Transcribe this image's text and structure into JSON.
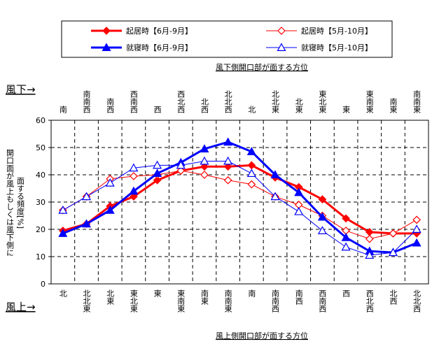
{
  "chart_data": {
    "type": "line",
    "categories": [
      "北",
      "北北東",
      "北東",
      "東北東",
      "東",
      "東南東",
      "南東",
      "南南東",
      "南",
      "南南西",
      "南西",
      "西南西",
      "西",
      "西北西",
      "北西",
      "北北西"
    ],
    "top_categories": [
      "南",
      "南南西",
      "南西",
      "西南西",
      "西",
      "西北西",
      "北西",
      "北北西",
      "北",
      "北北東",
      "北東",
      "東北東",
      "東",
      "東南東",
      "南東",
      "南南東"
    ],
    "x_label": "風上側開口部が面する方位",
    "x2_label": "風下側開口部が面する方位",
    "left_top_label": "風下→",
    "left_bottom_label": "風上→",
    "y_label": [
      "開口面が風上もしくは風下側に",
      "面する頻度[%]"
    ],
    "ylim": [
      0,
      60
    ],
    "yticks": [
      0,
      10,
      20,
      30,
      40,
      50,
      60
    ],
    "grid": true,
    "series": [
      {
        "name": "起居時【6月-9月】",
        "color": "#ff0000",
        "marker": "diamond",
        "filled": true,
        "line_width": 3,
        "values": [
          19.5,
          22,
          28.5,
          32,
          38,
          41.5,
          43,
          43,
          43.5,
          39,
          35.5,
          31,
          24,
          19,
          18.5,
          18.5
        ]
      },
      {
        "name": "起居時【5月-10月】",
        "color": "#ff0000",
        "marker": "diamond",
        "filled": false,
        "line_width": 1,
        "values": [
          27,
          32,
          38.5,
          39.5,
          40,
          41.5,
          40,
          38,
          36.5,
          32,
          29,
          25,
          19.5,
          16.5,
          18.5,
          23.5
        ]
      },
      {
        "name": "就寝時【6月-9月】",
        "color": "#0000ff",
        "marker": "triangle",
        "filled": true,
        "line_width": 3,
        "values": [
          18.5,
          22,
          27,
          34,
          40.5,
          44.5,
          49.5,
          52,
          48.5,
          40,
          33.5,
          24.5,
          17,
          12,
          11.5,
          15
        ]
      },
      {
        "name": "就寝時【5月-10月】",
        "color": "#0000ff",
        "marker": "triangle",
        "filled": false,
        "line_width": 1,
        "values": [
          27,
          32,
          37,
          42.5,
          43.5,
          43.5,
          45,
          45,
          40.5,
          32,
          26.5,
          19.5,
          13.5,
          10.5,
          11.5,
          20
        ]
      }
    ]
  }
}
